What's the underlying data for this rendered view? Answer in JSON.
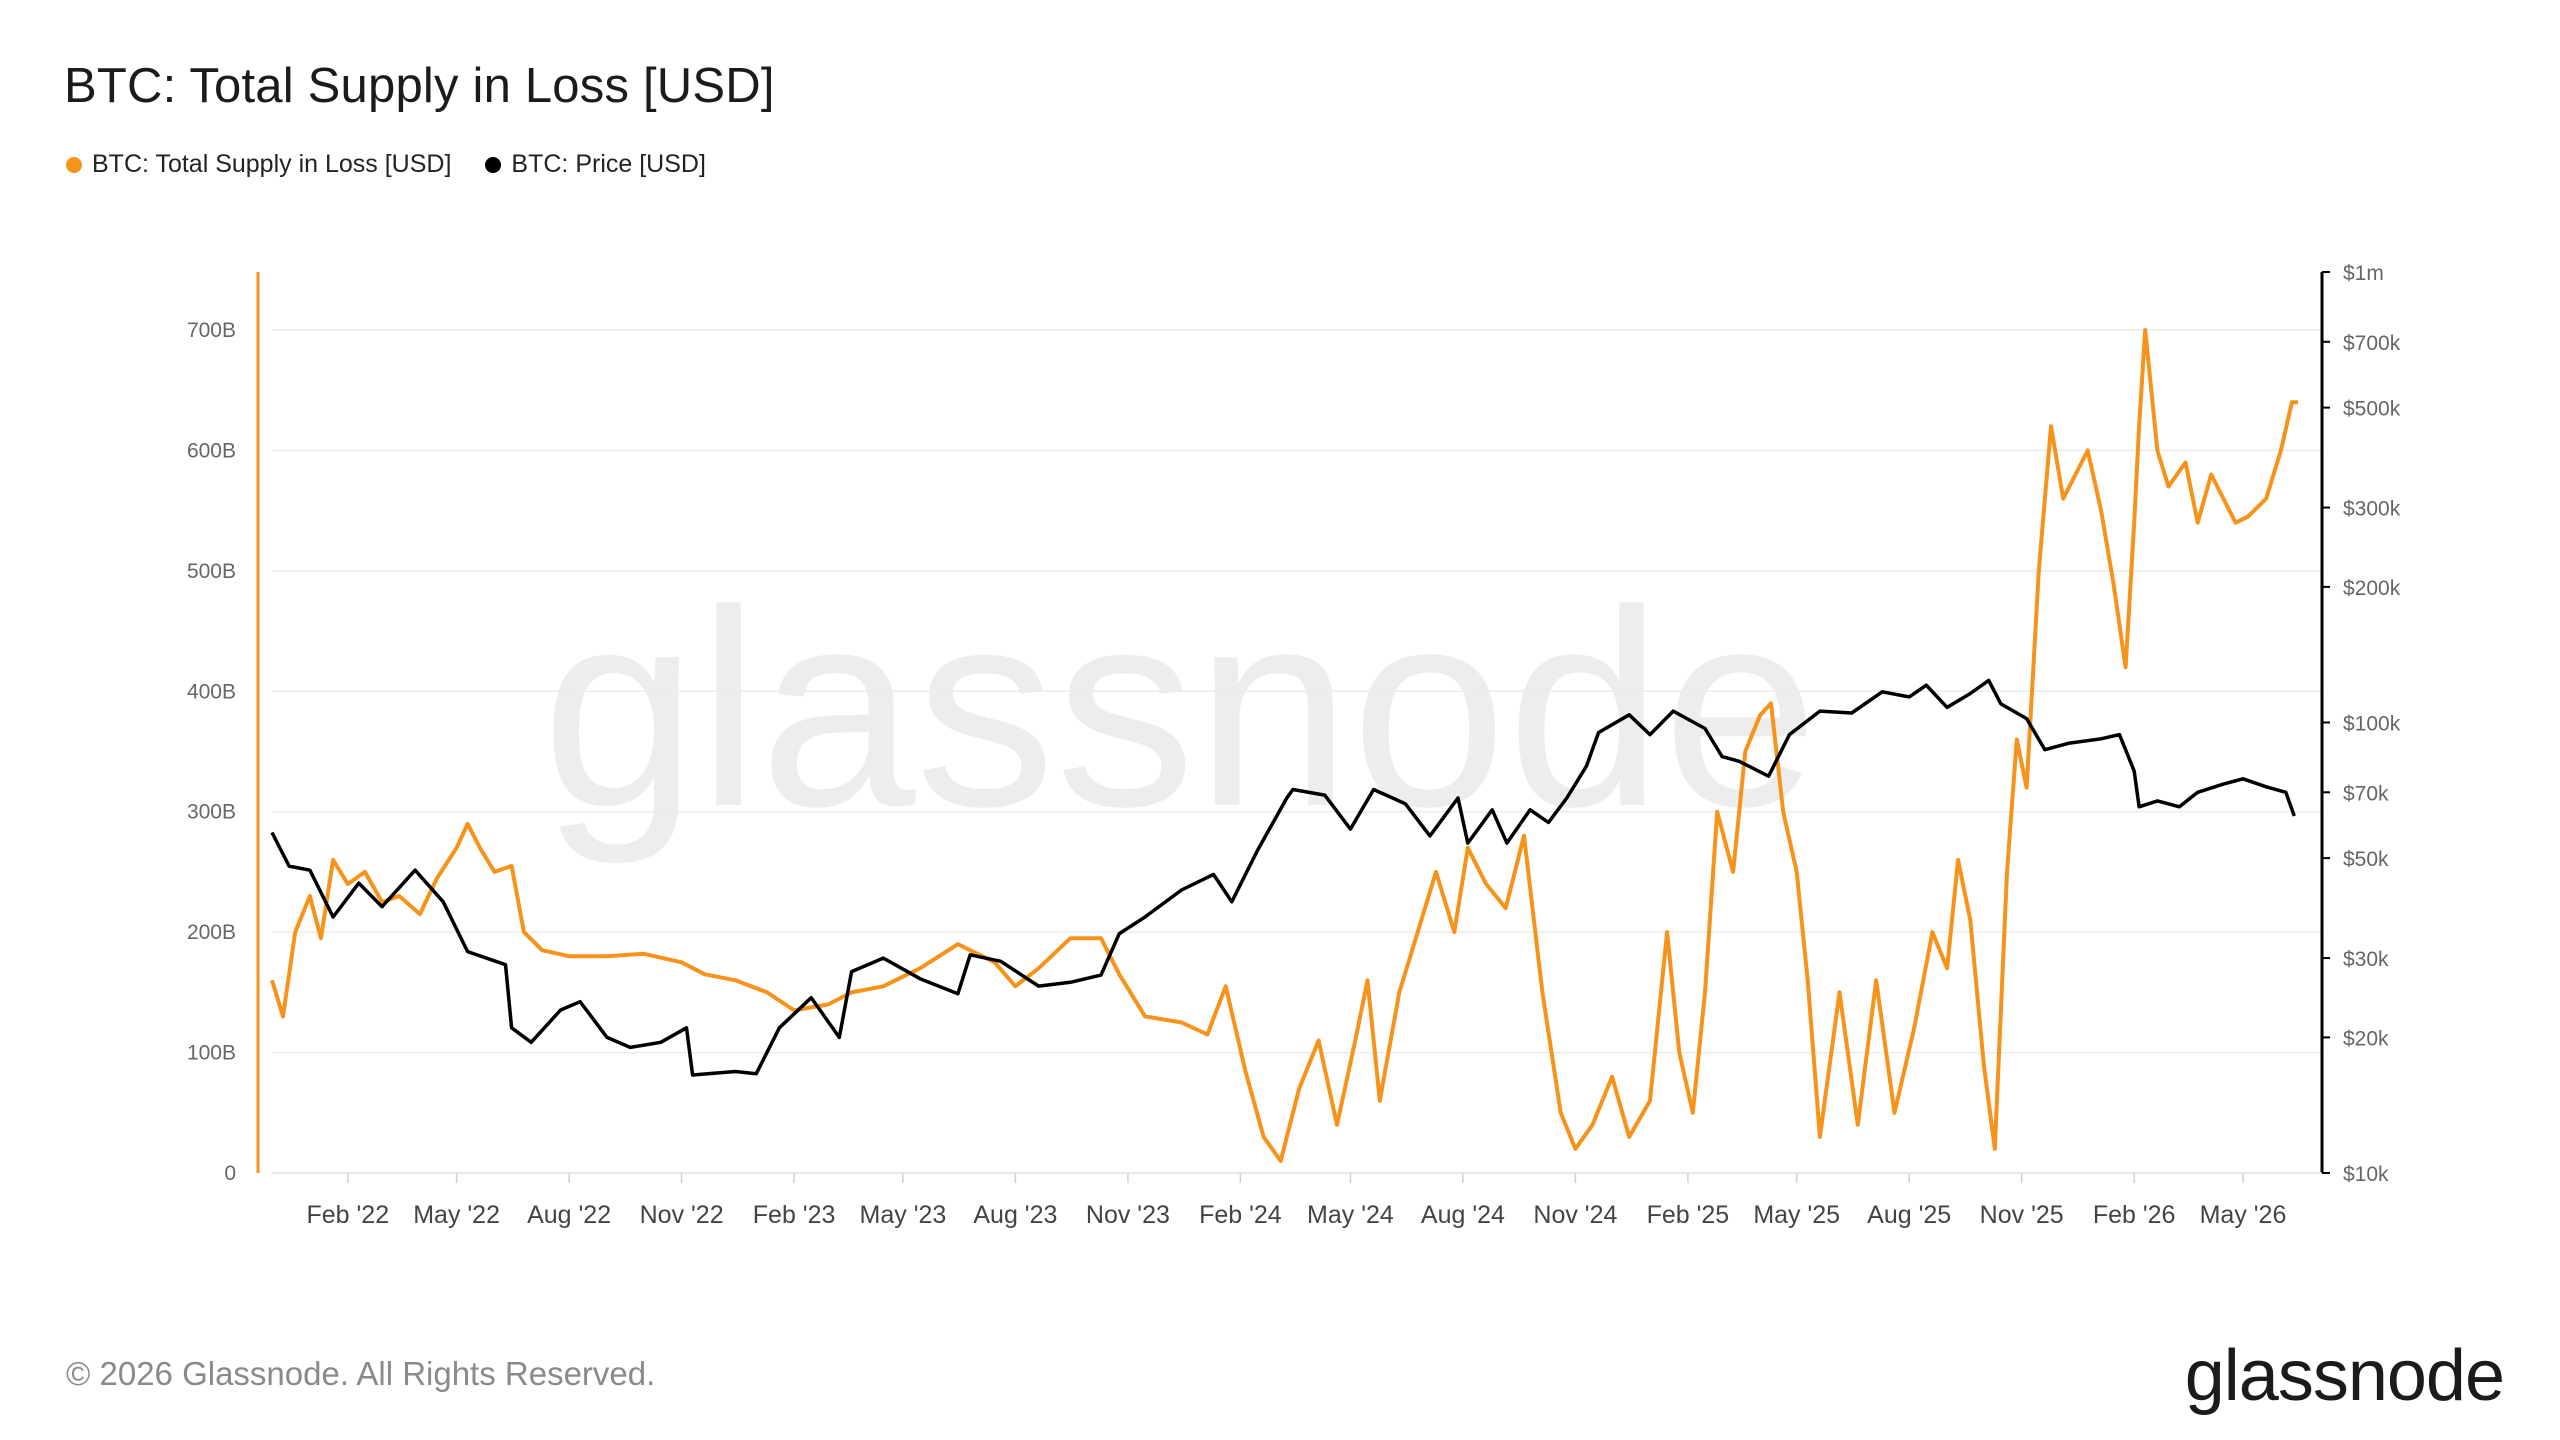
{
  "title": "BTC: Total Supply in Loss [USD]",
  "legend": [
    {
      "label": "BTC: Total Supply in Loss [USD]",
      "color": "#f7931a"
    },
    {
      "label": "BTC: Price [USD]",
      "color": "#000000"
    }
  ],
  "footer": "© 2026 Glassnode. All Rights Reserved.",
  "logo": "glassnode",
  "watermark": "glassnode",
  "chart_data": {
    "type": "line",
    "title": "BTC: Total Supply in Loss [USD]",
    "x_range": [
      "2021-12",
      "2026-07"
    ],
    "x_ticks": [
      "Feb '22",
      "May '22",
      "Aug '22",
      "Nov '22",
      "Feb '23",
      "May '23",
      "Aug '23",
      "Nov '23",
      "Feb '24",
      "May '24",
      "Aug '24",
      "Nov '24",
      "Feb '25",
      "May '25",
      "Aug '25",
      "Nov '25",
      "Feb '26",
      "May '26"
    ],
    "y_left": {
      "ticks": [
        "0",
        "100B",
        "200B",
        "300B",
        "400B",
        "500B",
        "600B",
        "700B"
      ],
      "min": 0,
      "max": 700,
      "unit": "B USD"
    },
    "y_right": {
      "scale": "log",
      "ticks": [
        "$10k",
        "$20k",
        "$30k",
        "$50k",
        "$70k",
        "$100k",
        "$200k",
        "$300k",
        "$500k",
        "$700k",
        "$1m"
      ],
      "min": 10000,
      "max": 1000000
    },
    "grid": true,
    "legend_position": "top-left",
    "series": [
      {
        "name": "BTC: Total Supply in Loss [USD]",
        "axis": "left",
        "color": "#f7931a",
        "points": [
          [
            "2021-12-01",
            160
          ],
          [
            "2021-12-10",
            130
          ],
          [
            "2021-12-20",
            200
          ],
          [
            "2022-01-01",
            230
          ],
          [
            "2022-01-10",
            195
          ],
          [
            "2022-01-20",
            260
          ],
          [
            "2022-02-01",
            240
          ],
          [
            "2022-02-15",
            250
          ],
          [
            "2022-03-01",
            225
          ],
          [
            "2022-03-15",
            230
          ],
          [
            "2022-04-01",
            215
          ],
          [
            "2022-04-15",
            245
          ],
          [
            "2022-05-01",
            270
          ],
          [
            "2022-05-10",
            290
          ],
          [
            "2022-05-20",
            270
          ],
          [
            "2022-06-01",
            250
          ],
          [
            "2022-06-15",
            255
          ],
          [
            "2022-06-25",
            200
          ],
          [
            "2022-07-10",
            185
          ],
          [
            "2022-08-01",
            180
          ],
          [
            "2022-09-01",
            180
          ],
          [
            "2022-10-01",
            182
          ],
          [
            "2022-11-01",
            175
          ],
          [
            "2022-11-20",
            165
          ],
          [
            "2022-12-15",
            160
          ],
          [
            "2023-01-10",
            150
          ],
          [
            "2023-02-01",
            135
          ],
          [
            "2023-03-01",
            140
          ],
          [
            "2023-03-20",
            150
          ],
          [
            "2023-04-15",
            155
          ],
          [
            "2023-05-15",
            170
          ],
          [
            "2023-06-15",
            190
          ],
          [
            "2023-07-15",
            175
          ],
          [
            "2023-08-01",
            155
          ],
          [
            "2023-08-20",
            170
          ],
          [
            "2023-09-15",
            195
          ],
          [
            "2023-10-10",
            195
          ],
          [
            "2023-10-25",
            165
          ],
          [
            "2023-11-15",
            130
          ],
          [
            "2023-12-15",
            125
          ],
          [
            "2024-01-05",
            115
          ],
          [
            "2024-01-20",
            155
          ],
          [
            "2024-02-05",
            85
          ],
          [
            "2024-02-20",
            30
          ],
          [
            "2024-03-05",
            10
          ],
          [
            "2024-03-20",
            70
          ],
          [
            "2024-04-05",
            110
          ],
          [
            "2024-04-20",
            40
          ],
          [
            "2024-05-05",
            110
          ],
          [
            "2024-05-15",
            160
          ],
          [
            "2024-05-25",
            60
          ],
          [
            "2024-06-10",
            150
          ],
          [
            "2024-06-25",
            200
          ],
          [
            "2024-07-10",
            250
          ],
          [
            "2024-07-25",
            200
          ],
          [
            "2024-08-05",
            270
          ],
          [
            "2024-08-20",
            240
          ],
          [
            "2024-09-05",
            220
          ],
          [
            "2024-09-20",
            280
          ],
          [
            "2024-10-05",
            150
          ],
          [
            "2024-10-20",
            50
          ],
          [
            "2024-11-01",
            20
          ],
          [
            "2024-11-15",
            40
          ],
          [
            "2024-12-01",
            80
          ],
          [
            "2024-12-15",
            30
          ],
          [
            "2025-01-01",
            60
          ],
          [
            "2025-01-15",
            200
          ],
          [
            "2025-01-25",
            100
          ],
          [
            "2025-02-05",
            50
          ],
          [
            "2025-02-15",
            150
          ],
          [
            "2025-02-25",
            300
          ],
          [
            "2025-03-10",
            250
          ],
          [
            "2025-03-20",
            350
          ],
          [
            "2025-04-01",
            380
          ],
          [
            "2025-04-10",
            390
          ],
          [
            "2025-04-20",
            300
          ],
          [
            "2025-05-01",
            250
          ],
          [
            "2025-05-10",
            160
          ],
          [
            "2025-05-20",
            30
          ],
          [
            "2025-06-05",
            150
          ],
          [
            "2025-06-20",
            40
          ],
          [
            "2025-07-05",
            160
          ],
          [
            "2025-07-20",
            50
          ],
          [
            "2025-08-05",
            120
          ],
          [
            "2025-08-20",
            200
          ],
          [
            "2025-09-01",
            170
          ],
          [
            "2025-09-10",
            260
          ],
          [
            "2025-09-20",
            210
          ],
          [
            "2025-10-01",
            90
          ],
          [
            "2025-10-10",
            20
          ],
          [
            "2025-10-20",
            250
          ],
          [
            "2025-10-28",
            360
          ],
          [
            "2025-11-05",
            320
          ],
          [
            "2025-11-15",
            500
          ],
          [
            "2025-11-25",
            620
          ],
          [
            "2025-12-05",
            560
          ],
          [
            "2025-12-15",
            580
          ],
          [
            "2025-12-25",
            600
          ],
          [
            "2026-01-05",
            550
          ],
          [
            "2026-01-15",
            490
          ],
          [
            "2026-01-25",
            420
          ],
          [
            "2026-02-01",
            540
          ],
          [
            "2026-02-05",
            620
          ],
          [
            "2026-02-10",
            700
          ],
          [
            "2026-02-20",
            600
          ],
          [
            "2026-03-01",
            570
          ],
          [
            "2026-03-15",
            590
          ],
          [
            "2026-03-25",
            540
          ],
          [
            "2026-04-05",
            580
          ],
          [
            "2026-04-15",
            560
          ],
          [
            "2026-04-25",
            540
          ],
          [
            "2026-05-05",
            545
          ],
          [
            "2026-05-20",
            560
          ],
          [
            "2026-06-01",
            600
          ],
          [
            "2026-06-10",
            640
          ],
          [
            "2026-06-15",
            640
          ]
        ]
      },
      {
        "name": "BTC: Price [USD]",
        "axis": "right",
        "color": "#000000",
        "points": [
          [
            "2021-12-01",
            57000
          ],
          [
            "2021-12-15",
            48000
          ],
          [
            "2022-01-01",
            47000
          ],
          [
            "2022-01-20",
            37000
          ],
          [
            "2022-02-10",
            44000
          ],
          [
            "2022-03-01",
            39000
          ],
          [
            "2022-03-28",
            47000
          ],
          [
            "2022-04-20",
            40000
          ],
          [
            "2022-05-10",
            31000
          ],
          [
            "2022-06-10",
            29000
          ],
          [
            "2022-06-15",
            21000
          ],
          [
            "2022-07-01",
            19500
          ],
          [
            "2022-07-25",
            23000
          ],
          [
            "2022-08-10",
            24000
          ],
          [
            "2022-09-01",
            20000
          ],
          [
            "2022-09-20",
            19000
          ],
          [
            "2022-10-15",
            19500
          ],
          [
            "2022-11-05",
            21000
          ],
          [
            "2022-11-10",
            16500
          ],
          [
            "2022-12-15",
            16800
          ],
          [
            "2023-01-01",
            16600
          ],
          [
            "2023-01-20",
            21000
          ],
          [
            "2023-02-15",
            24500
          ],
          [
            "2023-03-10",
            20000
          ],
          [
            "2023-03-20",
            28000
          ],
          [
            "2023-04-15",
            30000
          ],
          [
            "2023-05-15",
            27000
          ],
          [
            "2023-06-15",
            25000
          ],
          [
            "2023-06-25",
            30500
          ],
          [
            "2023-07-20",
            29500
          ],
          [
            "2023-08-20",
            26000
          ],
          [
            "2023-09-15",
            26500
          ],
          [
            "2023-10-10",
            27500
          ],
          [
            "2023-10-25",
            34000
          ],
          [
            "2023-11-15",
            37000
          ],
          [
            "2023-12-15",
            42500
          ],
          [
            "2024-01-10",
            46000
          ],
          [
            "2024-01-25",
            40000
          ],
          [
            "2024-02-15",
            52000
          ],
          [
            "2024-03-10",
            68000
          ],
          [
            "2024-03-15",
            71000
          ],
          [
            "2024-04-10",
            69000
          ],
          [
            "2024-05-01",
            58000
          ],
          [
            "2024-05-20",
            71000
          ],
          [
            "2024-06-15",
            66000
          ],
          [
            "2024-07-05",
            56000
          ],
          [
            "2024-07-28",
            68000
          ],
          [
            "2024-08-05",
            54000
          ],
          [
            "2024-08-25",
            64000
          ],
          [
            "2024-09-06",
            54000
          ],
          [
            "2024-09-25",
            64000
          ],
          [
            "2024-10-10",
            60000
          ],
          [
            "2024-10-25",
            68000
          ],
          [
            "2024-11-10",
            80000
          ],
          [
            "2024-11-20",
            95000
          ],
          [
            "2024-12-15",
            104000
          ],
          [
            "2025-01-01",
            94000
          ],
          [
            "2025-01-20",
            106000
          ],
          [
            "2025-02-15",
            97000
          ],
          [
            "2025-03-01",
            84000
          ],
          [
            "2025-03-15",
            82000
          ],
          [
            "2025-04-08",
            76000
          ],
          [
            "2025-04-25",
            94000
          ],
          [
            "2025-05-20",
            106000
          ],
          [
            "2025-06-15",
            105000
          ],
          [
            "2025-07-10",
            117000
          ],
          [
            "2025-08-01",
            114000
          ],
          [
            "2025-08-15",
            121000
          ],
          [
            "2025-09-01",
            108000
          ],
          [
            "2025-09-20",
            116000
          ],
          [
            "2025-10-05",
            124000
          ],
          [
            "2025-10-15",
            110000
          ],
          [
            "2025-11-05",
            102000
          ],
          [
            "2025-11-20",
            87000
          ],
          [
            "2025-12-10",
            90000
          ],
          [
            "2026-01-05",
            92000
          ],
          [
            "2026-01-20",
            94000
          ],
          [
            "2026-02-01",
            78000
          ],
          [
            "2026-02-05",
            65000
          ],
          [
            "2026-02-20",
            67000
          ],
          [
            "2026-03-10",
            65000
          ],
          [
            "2026-03-25",
            70000
          ],
          [
            "2026-04-15",
            73000
          ],
          [
            "2026-05-01",
            75000
          ],
          [
            "2026-05-20",
            72000
          ],
          [
            "2026-06-05",
            70000
          ],
          [
            "2026-06-12",
            62000
          ]
        ]
      }
    ]
  }
}
